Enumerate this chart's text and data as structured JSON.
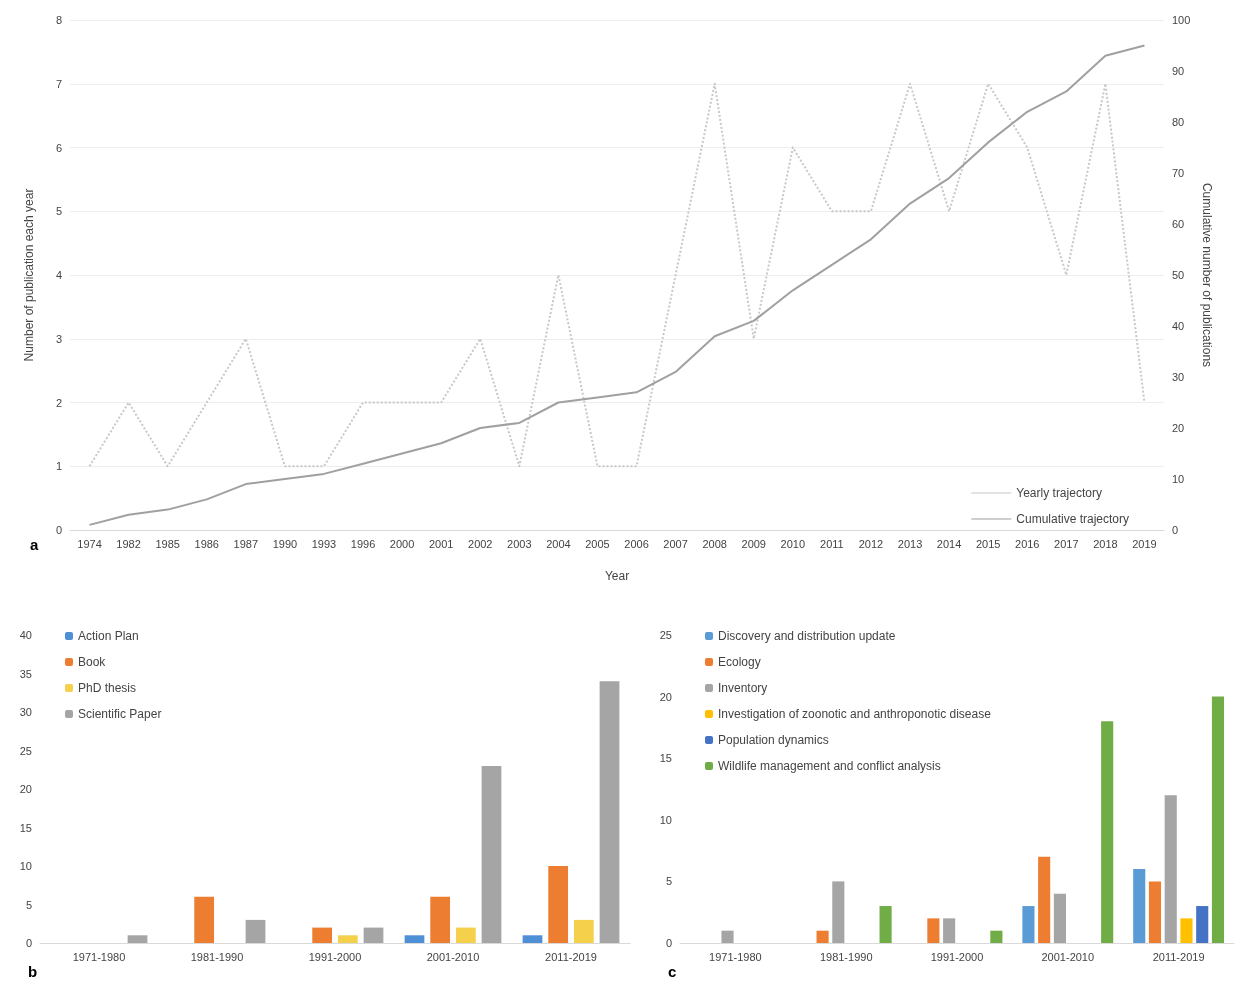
{
  "chart_data": [
    {
      "type": "line",
      "xlabel": "Year",
      "ylabel": "Number of publication each year",
      "y2label": "Cumulative number of publications",
      "categories": [
        "1974",
        "1982",
        "1985",
        "1986",
        "1987",
        "1990",
        "1993",
        "1996",
        "2000",
        "2001",
        "2002",
        "2003",
        "2004",
        "2005",
        "2006",
        "2007",
        "2008",
        "2009",
        "2010",
        "2011",
        "2012",
        "2013",
        "2014",
        "2015",
        "2016",
        "2017",
        "2018",
        "2019"
      ],
      "series": [
        {
          "name": "Yearly trajectory",
          "color": "#c8c8c8",
          "line_style": "dotted",
          "values": [
            1,
            2,
            1,
            2,
            3,
            1,
            1,
            2,
            2,
            2,
            3,
            1,
            4,
            1,
            1,
            4,
            7,
            3,
            6,
            5,
            5,
            7,
            5,
            7,
            6,
            4,
            7,
            2
          ]
        },
        {
          "name": "Cumulative trajectory",
          "color": "#a0a0a0",
          "line_style": "solid",
          "axis": "y2",
          "values": [
            1,
            3,
            4,
            6,
            9,
            10,
            11,
            13,
            15,
            17,
            20,
            21,
            25,
            26,
            27,
            31,
            38,
            41,
            47,
            52,
            57,
            64,
            69,
            76,
            82,
            86,
            93,
            95
          ]
        }
      ],
      "ylim": [
        0,
        8
      ],
      "yticks": [
        0,
        1,
        2,
        3,
        4,
        5,
        6,
        7,
        8
      ],
      "y2lim": [
        0,
        100
      ],
      "y2ticks": [
        0,
        10,
        20,
        30,
        40,
        50,
        60,
        70,
        80,
        90,
        100
      ],
      "grid": "y",
      "legend": "bottom right",
      "marker": "none",
      "annotations": [
        "a"
      ]
    },
    {
      "type": "bar",
      "categories": [
        "1971-1980",
        "1981-1990",
        "1991-2000",
        "2001-2010",
        "2011-2019"
      ],
      "series": [
        {
          "name": "Action Plan",
          "color": "#4e8fd6",
          "values": [
            null,
            null,
            null,
            1,
            1
          ]
        },
        {
          "name": "Book",
          "color": "#ed7d31",
          "values": [
            null,
            6,
            2,
            6,
            10
          ]
        },
        {
          "name": "PhD thesis",
          "color": "#f5d04a",
          "values": [
            null,
            null,
            1,
            2,
            3
          ]
        },
        {
          "name": "Scientific Paper",
          "color": "#a5a5a5",
          "values": [
            1,
            3,
            2,
            23,
            34
          ]
        }
      ],
      "ylim": [
        0,
        40
      ],
      "yticks": [
        0,
        5,
        10,
        15,
        20,
        25,
        30,
        35,
        40
      ],
      "legend": "top left",
      "annotations": [
        "b"
      ]
    },
    {
      "type": "bar",
      "categories": [
        "1971-1980",
        "1981-1990",
        "1991-2000",
        "2001-2010",
        "2011-2019"
      ],
      "series": [
        {
          "name": "Discovery and distribution update",
          "color": "#5b9bd5",
          "values": [
            null,
            null,
            null,
            3,
            6
          ]
        },
        {
          "name": "Ecology",
          "color": "#ed7d31",
          "values": [
            null,
            1,
            2,
            7,
            5
          ]
        },
        {
          "name": "Inventory",
          "color": "#a5a5a5",
          "values": [
            1,
            5,
            2,
            4,
            12
          ]
        },
        {
          "name": "Investigation of zoonotic and anthroponotic disease",
          "color": "#ffc000",
          "values": [
            null,
            null,
            null,
            null,
            2
          ]
        },
        {
          "name": "Population dynamics",
          "color": "#4472c4",
          "values": [
            null,
            null,
            null,
            null,
            3
          ]
        },
        {
          "name": "Wildlife management and conflict analysis",
          "color": "#70ad47",
          "values": [
            null,
            3,
            1,
            18,
            20
          ]
        }
      ],
      "ylim": [
        0,
        25
      ],
      "yticks": [
        0,
        5,
        10,
        15,
        20,
        25
      ],
      "legend": "top left",
      "annotations": [
        "c"
      ]
    }
  ]
}
